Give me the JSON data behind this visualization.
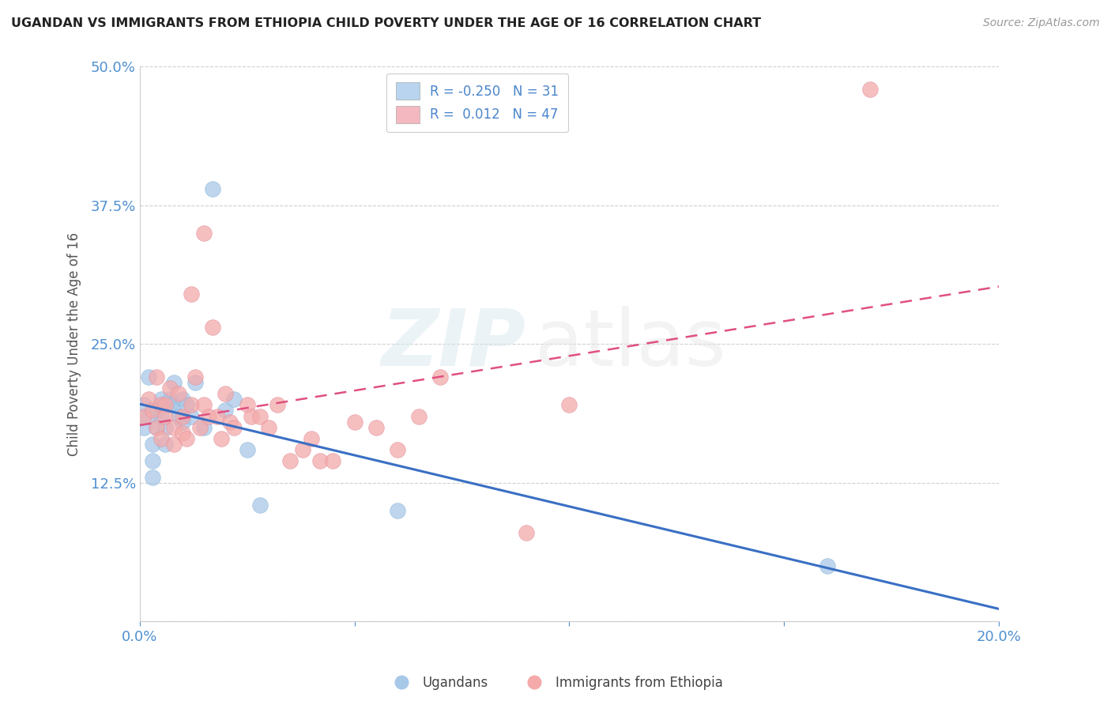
{
  "title": "UGANDAN VS IMMIGRANTS FROM ETHIOPIA CHILD POVERTY UNDER THE AGE OF 16 CORRELATION CHART",
  "source": "Source: ZipAtlas.com",
  "ylabel": "Child Poverty Under the Age of 16",
  "xlim": [
    0.0,
    0.2
  ],
  "ylim": [
    0.0,
    0.5
  ],
  "grid_color": "#d0d0d0",
  "background_color": "#ffffff",
  "legend_R1": "-0.250",
  "legend_N1": "31",
  "legend_R2": "0.012",
  "legend_N2": "47",
  "blue_color": "#a8c8e8",
  "pink_color": "#f4aaaa",
  "blue_line_color": "#3a6fc4",
  "pink_line_color": "#e05080",
  "watermark_zip": "ZIP",
  "watermark_atlas": "atlas",
  "legend_label1": "Ugandans",
  "legend_label2": "Immigrants from Ethiopia",
  "ugandan_x": [
    0.001,
    0.001,
    0.002,
    0.002,
    0.003,
    0.003,
    0.003,
    0.004,
    0.004,
    0.005,
    0.005,
    0.006,
    0.006,
    0.007,
    0.007,
    0.008,
    0.008,
    0.009,
    0.01,
    0.01,
    0.011,
    0.012,
    0.013,
    0.015,
    0.017,
    0.02,
    0.022,
    0.025,
    0.028,
    0.06,
    0.16
  ],
  "ugandan_y": [
    0.195,
    0.175,
    0.22,
    0.185,
    0.16,
    0.145,
    0.13,
    0.19,
    0.175,
    0.2,
    0.185,
    0.175,
    0.16,
    0.2,
    0.195,
    0.215,
    0.195,
    0.185,
    0.2,
    0.18,
    0.195,
    0.185,
    0.215,
    0.175,
    0.39,
    0.19,
    0.2,
    0.155,
    0.105,
    0.1,
    0.05
  ],
  "ethiopia_x": [
    0.001,
    0.002,
    0.003,
    0.004,
    0.004,
    0.005,
    0.005,
    0.006,
    0.006,
    0.007,
    0.008,
    0.008,
    0.009,
    0.01,
    0.01,
    0.011,
    0.012,
    0.012,
    0.013,
    0.014,
    0.015,
    0.015,
    0.016,
    0.017,
    0.018,
    0.019,
    0.02,
    0.021,
    0.022,
    0.025,
    0.026,
    0.028,
    0.03,
    0.032,
    0.035,
    0.038,
    0.04,
    0.042,
    0.045,
    0.05,
    0.055,
    0.06,
    0.065,
    0.07,
    0.09,
    0.1,
    0.17
  ],
  "ethiopia_y": [
    0.185,
    0.2,
    0.19,
    0.175,
    0.22,
    0.195,
    0.165,
    0.195,
    0.185,
    0.21,
    0.175,
    0.16,
    0.205,
    0.185,
    0.17,
    0.165,
    0.195,
    0.295,
    0.22,
    0.175,
    0.195,
    0.35,
    0.185,
    0.265,
    0.185,
    0.165,
    0.205,
    0.18,
    0.175,
    0.195,
    0.185,
    0.185,
    0.175,
    0.195,
    0.145,
    0.155,
    0.165,
    0.145,
    0.145,
    0.18,
    0.175,
    0.155,
    0.185,
    0.22,
    0.08,
    0.195,
    0.48
  ]
}
